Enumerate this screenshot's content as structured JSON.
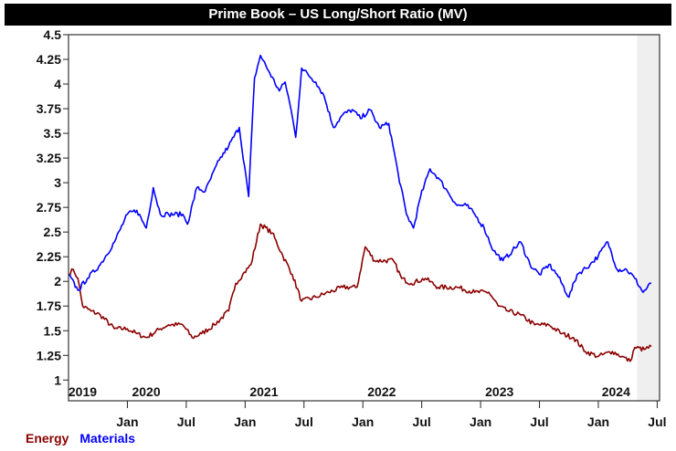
{
  "chart_data": {
    "type": "line",
    "title": "Prime Book – US Long/Short Ratio (MV)",
    "xlabel": "",
    "ylabel": "",
    "xlim": [
      2019.5,
      2024.52
    ],
    "ylim": [
      0.79,
      4.5
    ],
    "yticks": [
      1,
      1.25,
      1.5,
      1.75,
      2,
      2.25,
      2.5,
      2.75,
      3,
      3.25,
      3.5,
      3.75,
      4,
      4.25,
      4.5
    ],
    "ytick_labels": [
      "1",
      "1.25",
      "1.5",
      "1.75",
      "2",
      "2.25",
      "2.5",
      "2.75",
      "3",
      "3.25",
      "3.5",
      "3.75",
      "4",
      "4.25",
      "4.5"
    ],
    "year_labels": [
      {
        "t": 2019.62,
        "label": "2019"
      },
      {
        "t": 2020.16,
        "label": "2020"
      },
      {
        "t": 2021.16,
        "label": "2021"
      },
      {
        "t": 2022.16,
        "label": "2022"
      },
      {
        "t": 2023.16,
        "label": "2023"
      },
      {
        "t": 2024.15,
        "label": "2024"
      }
    ],
    "month_ticks": [
      {
        "t": 2020.0,
        "label": "Jan"
      },
      {
        "t": 2020.5,
        "label": "Jul"
      },
      {
        "t": 2021.0,
        "label": "Jan"
      },
      {
        "t": 2021.5,
        "label": "Jul"
      },
      {
        "t": 2022.0,
        "label": "Jan"
      },
      {
        "t": 2022.5,
        "label": "Jul"
      },
      {
        "t": 2023.0,
        "label": "Jan"
      },
      {
        "t": 2023.5,
        "label": "Jul"
      },
      {
        "t": 2024.0,
        "label": "Jan"
      },
      {
        "t": 2024.5,
        "label": "Jul"
      }
    ],
    "shaded_from": 2024.33,
    "grid": false,
    "legend_position": "bottom-left",
    "series": [
      {
        "name": "Energy",
        "color": "#8b0000",
        "points": [
          [
            2019.5,
            2.07
          ],
          [
            2019.54,
            2.12
          ],
          [
            2019.58,
            2.03
          ],
          [
            2019.62,
            1.75
          ],
          [
            2019.69,
            1.7
          ],
          [
            2019.77,
            1.66
          ],
          [
            2019.89,
            1.52
          ],
          [
            2020.0,
            1.52
          ],
          [
            2020.08,
            1.47
          ],
          [
            2020.16,
            1.43
          ],
          [
            2020.28,
            1.52
          ],
          [
            2020.35,
            1.56
          ],
          [
            2020.47,
            1.56
          ],
          [
            2020.55,
            1.43
          ],
          [
            2020.63,
            1.47
          ],
          [
            2020.74,
            1.56
          ],
          [
            2020.86,
            1.7
          ],
          [
            2020.92,
            1.98
          ],
          [
            2020.98,
            2.07
          ],
          [
            2021.05,
            2.17
          ],
          [
            2021.13,
            2.58
          ],
          [
            2021.23,
            2.49
          ],
          [
            2021.32,
            2.26
          ],
          [
            2021.4,
            2.07
          ],
          [
            2021.48,
            1.8
          ],
          [
            2021.6,
            1.84
          ],
          [
            2021.71,
            1.89
          ],
          [
            2021.83,
            1.94
          ],
          [
            2021.95,
            1.94
          ],
          [
            2022.02,
            2.35
          ],
          [
            2022.1,
            2.21
          ],
          [
            2022.26,
            2.21
          ],
          [
            2022.33,
            2.03
          ],
          [
            2022.41,
            1.98
          ],
          [
            2022.53,
            2.03
          ],
          [
            2022.64,
            1.94
          ],
          [
            2022.8,
            1.94
          ],
          [
            2022.95,
            1.89
          ],
          [
            2023.07,
            1.89
          ],
          [
            2023.15,
            1.75
          ],
          [
            2023.23,
            1.7
          ],
          [
            2023.34,
            1.66
          ],
          [
            2023.46,
            1.56
          ],
          [
            2023.58,
            1.56
          ],
          [
            2023.69,
            1.47
          ],
          [
            2023.79,
            1.43
          ],
          [
            2023.89,
            1.29
          ],
          [
            2024.0,
            1.24
          ],
          [
            2024.12,
            1.29
          ],
          [
            2024.2,
            1.24
          ],
          [
            2024.27,
            1.19
          ],
          [
            2024.31,
            1.33
          ],
          [
            2024.39,
            1.31
          ],
          [
            2024.45,
            1.34
          ]
        ]
      },
      {
        "name": "Materials",
        "color": "#0000ff",
        "points": [
          [
            2019.5,
            2.07
          ],
          [
            2019.58,
            1.91
          ],
          [
            2019.66,
            2.03
          ],
          [
            2019.77,
            2.17
          ],
          [
            2019.89,
            2.4
          ],
          [
            2020.0,
            2.68
          ],
          [
            2020.08,
            2.72
          ],
          [
            2020.16,
            2.54
          ],
          [
            2020.22,
            2.95
          ],
          [
            2020.28,
            2.68
          ],
          [
            2020.35,
            2.68
          ],
          [
            2020.47,
            2.68
          ],
          [
            2020.51,
            2.58
          ],
          [
            2020.59,
            2.95
          ],
          [
            2020.66,
            2.91
          ],
          [
            2020.78,
            3.23
          ],
          [
            2020.86,
            3.37
          ],
          [
            2020.95,
            3.56
          ],
          [
            2021.03,
            2.86
          ],
          [
            2021.08,
            4.06
          ],
          [
            2021.13,
            4.29
          ],
          [
            2021.21,
            4.11
          ],
          [
            2021.29,
            3.93
          ],
          [
            2021.34,
            4.02
          ],
          [
            2021.39,
            3.74
          ],
          [
            2021.43,
            3.46
          ],
          [
            2021.48,
            4.16
          ],
          [
            2021.6,
            4.02
          ],
          [
            2021.67,
            3.88
          ],
          [
            2021.75,
            3.56
          ],
          [
            2021.83,
            3.69
          ],
          [
            2021.91,
            3.74
          ],
          [
            2021.98,
            3.65
          ],
          [
            2022.06,
            3.74
          ],
          [
            2022.14,
            3.56
          ],
          [
            2022.22,
            3.6
          ],
          [
            2022.3,
            3.09
          ],
          [
            2022.37,
            2.68
          ],
          [
            2022.43,
            2.54
          ],
          [
            2022.49,
            2.86
          ],
          [
            2022.57,
            3.14
          ],
          [
            2022.64,
            3.05
          ],
          [
            2022.72,
            2.91
          ],
          [
            2022.8,
            2.77
          ],
          [
            2022.88,
            2.77
          ],
          [
            2022.95,
            2.68
          ],
          [
            2023.03,
            2.54
          ],
          [
            2023.11,
            2.31
          ],
          [
            2023.19,
            2.21
          ],
          [
            2023.27,
            2.31
          ],
          [
            2023.34,
            2.4
          ],
          [
            2023.42,
            2.17
          ],
          [
            2023.5,
            2.07
          ],
          [
            2023.58,
            2.17
          ],
          [
            2023.65,
            2.07
          ],
          [
            2023.75,
            1.84
          ],
          [
            2023.82,
            2.07
          ],
          [
            2023.93,
            2.17
          ],
          [
            2024.0,
            2.26
          ],
          [
            2024.08,
            2.4
          ],
          [
            2024.16,
            2.12
          ],
          [
            2024.24,
            2.12
          ],
          [
            2024.31,
            2.03
          ],
          [
            2024.38,
            1.89
          ],
          [
            2024.45,
            1.98
          ]
        ]
      }
    ]
  }
}
